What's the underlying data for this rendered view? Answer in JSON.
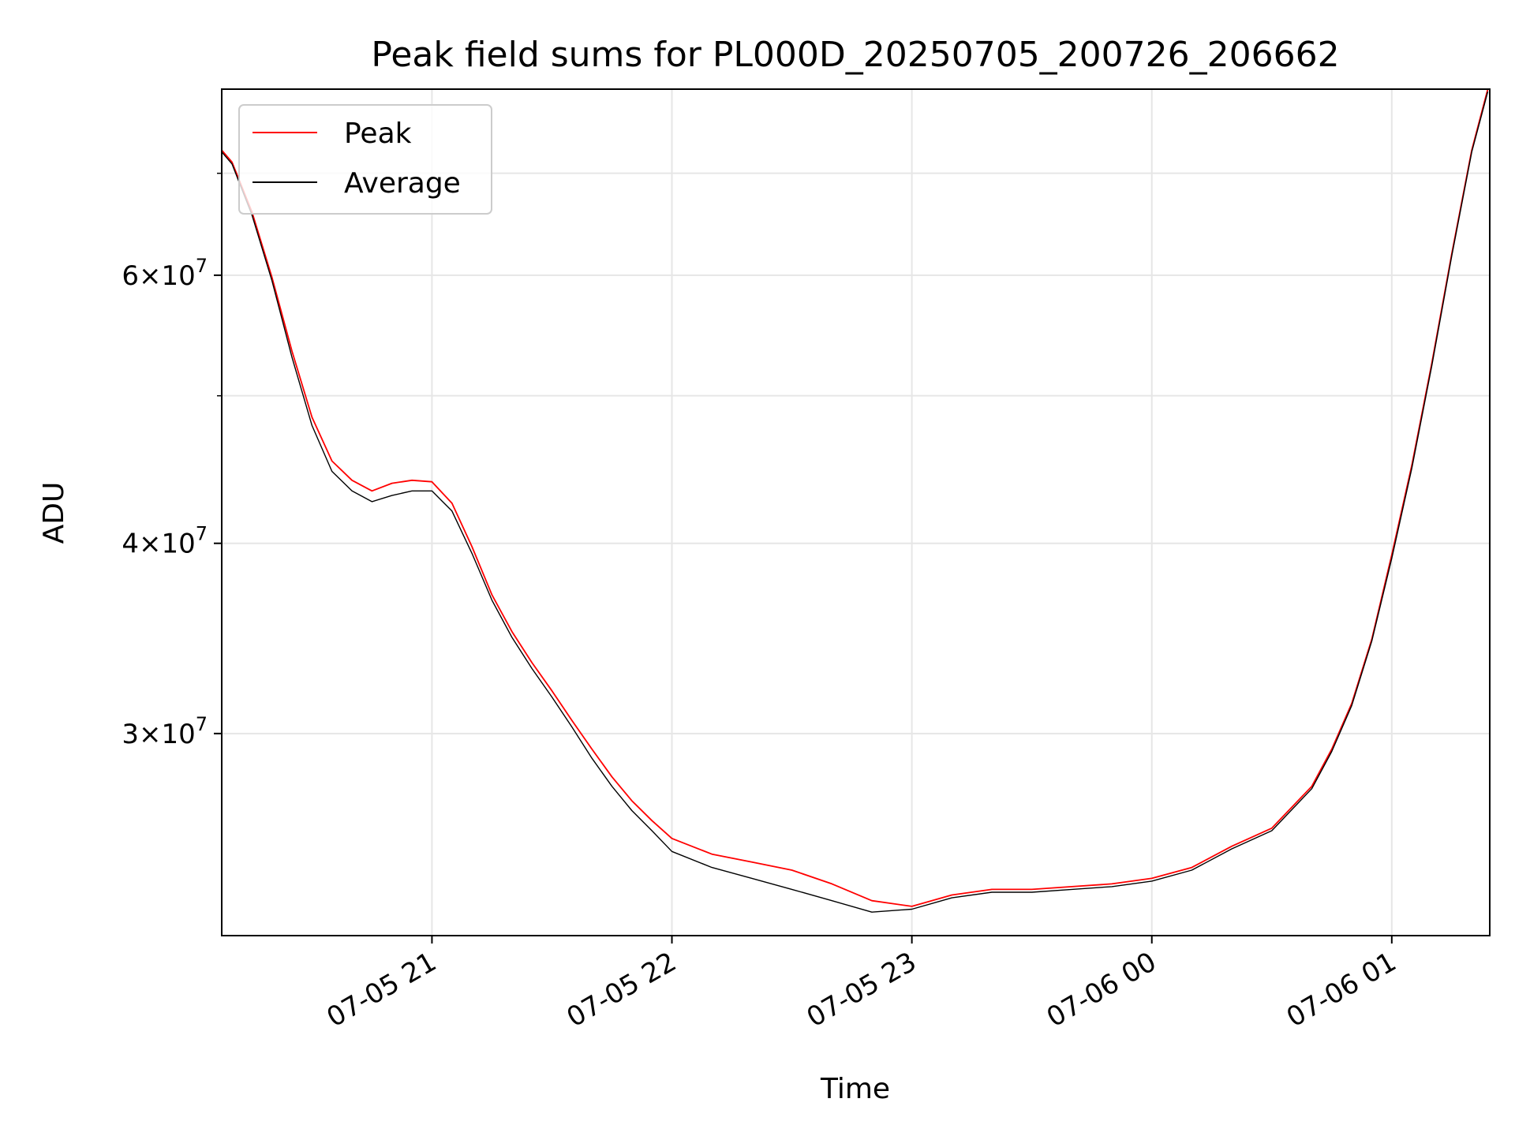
{
  "chart_data": {
    "type": "line",
    "title": "Peak field sums for PL000D_20250705_200726_206662",
    "xlabel": "Time",
    "ylabel": "ADU",
    "y_scale": "log",
    "ylim": [
      22100000,
      79500000
    ],
    "xlim": [
      "2025-07-05 20:07:26",
      "2025-07-06 01:24:30"
    ],
    "x_ticks": [
      {
        "x": "2025-07-05 21:00",
        "label": "07-05 21"
      },
      {
        "x": "2025-07-05 22:00",
        "label": "07-05 22"
      },
      {
        "x": "2025-07-05 23:00",
        "label": "07-05 23"
      },
      {
        "x": "2025-07-06 00:00",
        "label": "07-06 00"
      },
      {
        "x": "2025-07-06 01:00",
        "label": "07-06 01"
      }
    ],
    "y_ticks": [
      {
        "value": 30000000,
        "base": "3",
        "exp": "7"
      },
      {
        "value": 40000000,
        "base": "4",
        "exp": "7"
      },
      {
        "value": 60000000,
        "base": "6",
        "exp": "7"
      }
    ],
    "y_minor_ticks": [
      50000000,
      70000000
    ],
    "grid": true,
    "legend_position": "top-left",
    "colors": {
      "peak": "#ff0000",
      "average": "#000000",
      "grid": "#e6e6e6"
    },
    "x": [
      "2025-07-05 20:07:26",
      "2025-07-05 20:10",
      "2025-07-05 20:15",
      "2025-07-05 20:20",
      "2025-07-05 20:25",
      "2025-07-05 20:30",
      "2025-07-05 20:35",
      "2025-07-05 20:40",
      "2025-07-05 20:45",
      "2025-07-05 20:50",
      "2025-07-05 20:55",
      "2025-07-05 21:00",
      "2025-07-05 21:05",
      "2025-07-05 21:10",
      "2025-07-05 21:15",
      "2025-07-05 21:20",
      "2025-07-05 21:25",
      "2025-07-05 21:30",
      "2025-07-05 21:35",
      "2025-07-05 21:40",
      "2025-07-05 21:45",
      "2025-07-05 21:50",
      "2025-07-05 21:55",
      "2025-07-05 22:00",
      "2025-07-05 22:10",
      "2025-07-05 22:20",
      "2025-07-05 22:30",
      "2025-07-05 22:40",
      "2025-07-05 22:50",
      "2025-07-05 23:00",
      "2025-07-05 23:10",
      "2025-07-05 23:20",
      "2025-07-05 23:30",
      "2025-07-05 23:40",
      "2025-07-05 23:50",
      "2025-07-06 00:00",
      "2025-07-06 00:10",
      "2025-07-06 00:20",
      "2025-07-06 00:30",
      "2025-07-06 00:40",
      "2025-07-06 00:45",
      "2025-07-06 00:50",
      "2025-07-06 00:55",
      "2025-07-06 01:00",
      "2025-07-06 01:05",
      "2025-07-06 01:10",
      "2025-07-06 01:15",
      "2025-07-06 01:20",
      "2025-07-06 01:24"
    ],
    "series": [
      {
        "name": "Peak",
        "values": [
          72500000,
          71200000,
          66000000,
          59800000,
          53500000,
          48400000,
          45300000,
          44000000,
          43300000,
          43800000,
          44000000,
          43900000,
          42500000,
          39800000,
          37000000,
          35000000,
          33400000,
          32000000,
          30600000,
          29300000,
          28100000,
          27100000,
          26300000,
          25600000,
          25000000,
          24700000,
          24400000,
          23900000,
          23300000,
          23100000,
          23500000,
          23700000,
          23700000,
          23800000,
          23900000,
          24100000,
          24500000,
          25300000,
          26000000,
          27700000,
          29300000,
          31400000,
          34600000,
          39300000,
          45000000,
          52500000,
          62000000,
          72500000,
          79500000
        ]
      },
      {
        "name": "Average",
        "values": [
          72300000,
          71000000,
          65700000,
          59500000,
          53000000,
          47800000,
          44600000,
          43300000,
          42600000,
          43000000,
          43300000,
          43300000,
          42000000,
          39400000,
          36700000,
          34700000,
          33100000,
          31700000,
          30300000,
          28900000,
          27700000,
          26700000,
          25900000,
          25100000,
          24500000,
          24100000,
          23700000,
          23300000,
          22900000,
          23000000,
          23400000,
          23600000,
          23600000,
          23700000,
          23800000,
          24000000,
          24400000,
          25200000,
          25900000,
          27600000,
          29200000,
          31300000,
          34500000,
          39100000,
          44800000,
          52300000,
          61800000,
          72300000,
          79200000
        ]
      }
    ]
  }
}
